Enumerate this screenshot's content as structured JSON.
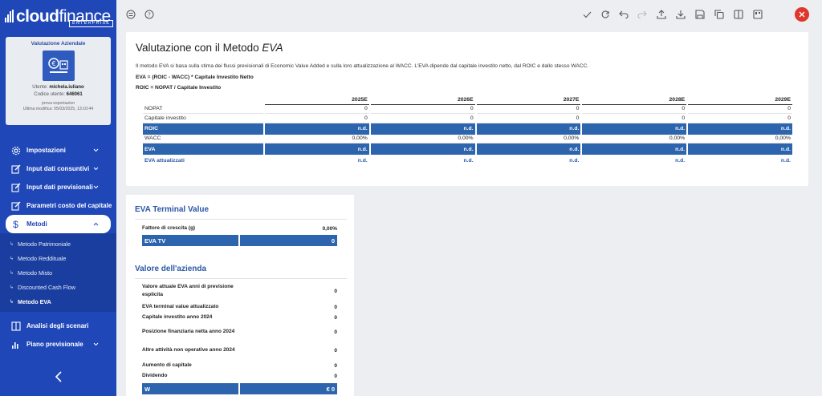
{
  "brand": {
    "name_bold": "cloud",
    "name_light": "finance",
    "edition": "ENTERPRISE"
  },
  "company_card": {
    "title": "Valutazione Aziendale",
    "user_label": "Utente:",
    "user": "michela.iuliano",
    "code_label": "Codice utente:",
    "code": "646061",
    "project": "prova esportazion",
    "modified_label": "Ultima modifica:",
    "modified": "05/03/2025, 13:10:44"
  },
  "nav": {
    "impostazioni": "Impostazioni",
    "consuntivi": "Input dati consuntivi",
    "previsionali": "Input dati previsionali",
    "parametri": "Parametri costo del capitale",
    "metodi": "Metodi",
    "sub": [
      "Metodo Patrimoniale",
      "Metodo Reddituale",
      "Metodo Misto",
      "Discounted Cash Flow",
      "Metodo EVA"
    ],
    "scenari": "Analisi degli scenari",
    "piano": "Piano previsionale"
  },
  "main": {
    "title_prefix": "Valutazione con il Metodo ",
    "title_em": "EVA",
    "description": "Il metodo EVA si basa sulla stima dei flussi previsionali di Economic Value Added e sulla loro attualizzazione al WACC. L'EVA dipende dal capitale investito netto, dal ROIC e dallo stesso WACC.",
    "formula1": "EVA = (ROIC - WACC) * Capitale Investito Netto",
    "formula2": "ROIC = NOPAT / Capitale Investito"
  },
  "table": {
    "years": [
      "2025E",
      "2026E",
      "2027E",
      "2028E",
      "2029E"
    ],
    "rows": [
      {
        "label": "NOPAT",
        "style": "plain",
        "values": [
          "0",
          "0",
          "0",
          "0",
          "0"
        ]
      },
      {
        "label": "Capitale investito",
        "style": "plain",
        "values": [
          "0",
          "0",
          "0",
          "0",
          "0"
        ]
      },
      {
        "label": "ROIC",
        "style": "blue",
        "values": [
          "n.d.",
          "n.d.",
          "n.d.",
          "n.d.",
          "n.d."
        ]
      },
      {
        "label": "WACC",
        "style": "plain",
        "values": [
          "0,00%",
          "0,00%",
          "0,00%",
          "0,00%",
          "0,00%"
        ]
      },
      {
        "label": "EVA",
        "style": "blue",
        "values": [
          "n.d.",
          "n.d.",
          "n.d.",
          "n.d.",
          "n.d."
        ]
      },
      {
        "label": "EVA attualizzati",
        "style": "att",
        "values": [
          "n.d.",
          "n.d.",
          "n.d.",
          "n.d.",
          "n.d."
        ]
      }
    ]
  },
  "terminal": {
    "title": "EVA Terminal Value",
    "growth_label": "Fattore di crescita (g)",
    "growth_value": "0,00%",
    "tv_label": "EVA TV",
    "tv_value": "0"
  },
  "valore": {
    "title": "Valore dell'azienda",
    "items": [
      {
        "label": "Valore attuale EVA anni di previsione esplicita",
        "value": "0"
      },
      {
        "label": "EVA terminal value attualizzato",
        "value": "0"
      },
      {
        "label": "Capitale investito anno 2024",
        "value": "0"
      },
      {
        "label": "Posizione finanziaria netta anno 2024",
        "value": "0"
      },
      {
        "label": "Altre attività non operative anno 2024",
        "value": "0"
      },
      {
        "label": "Aumento di capitale",
        "value": "0"
      },
      {
        "label": "Dividendo",
        "value": "0"
      }
    ],
    "w_label": "W",
    "w_value": "€ 0"
  },
  "colors": {
    "sidebar": "#1f47b8",
    "accent": "#2c64ad",
    "close": "#e0362b"
  },
  "icons": [
    "grid-icon",
    "help-icon",
    "check-icon",
    "refresh-icon",
    "undo-icon",
    "redo-icon",
    "upload-icon",
    "download-icon",
    "save-icon",
    "copy-icon",
    "columns-icon",
    "layout-icon",
    "close-icon"
  ]
}
